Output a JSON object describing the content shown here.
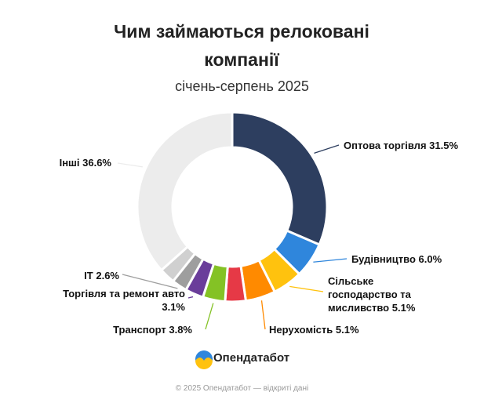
{
  "chart_data": {
    "type": "donut",
    "title": "Чим займаються релоковані компанії",
    "subtitle": "січень-серпень 2025",
    "categories": [
      "Оптова торгівля",
      "Будівництво",
      "Сільське господарство та мисливство",
      "Нерухомість",
      null,
      "Транспорт",
      "Торгівля та ремонт авто",
      "IT",
      null,
      "Інші"
    ],
    "values": [
      31.5,
      6.0,
      5.1,
      5.1,
      3.5,
      3.8,
      3.1,
      2.6,
      2.7,
      36.6
    ],
    "value_labels": [
      "31.5%",
      "6.0%",
      "5.1%",
      "5.1%",
      null,
      "3.8%",
      "3.1%",
      "2.6%",
      null,
      "36.6%"
    ],
    "colors": [
      "#2d3e5f",
      "#2f86dc",
      "#ffc20e",
      "#ff8a00",
      "#e63946",
      "#84c225",
      "#6a3d9a",
      "#9e9e9e",
      "#d0d0d0",
      "#ececec"
    ]
  },
  "logo": "Опендатабот",
  "footer": "© 2025 Опендатабот — відкриті дані"
}
